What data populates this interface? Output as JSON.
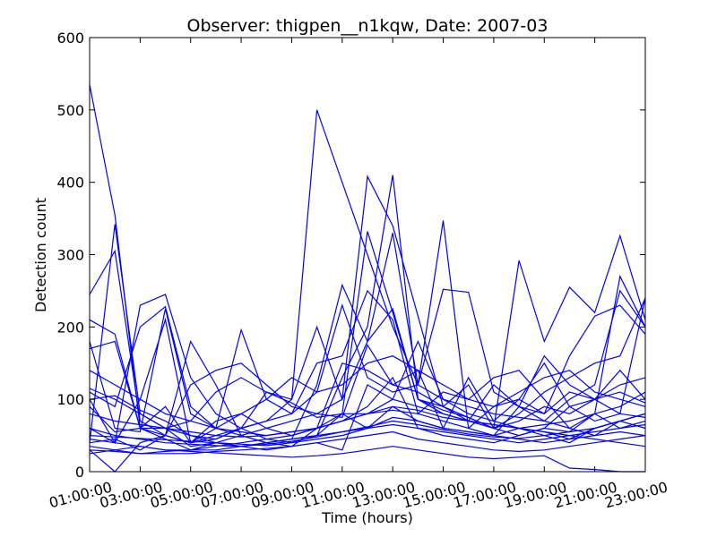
{
  "chart_data": {
    "type": "line",
    "title": "Observer: thigpen__n1kqw, Date: 2007-03",
    "xlabel": "Time (hours)",
    "ylabel": "Detection count",
    "xlim": [
      1,
      23
    ],
    "ylim": [
      0,
      600
    ],
    "x_ticks": [
      "01:00:00",
      "03:00:00",
      "05:00:00",
      "07:00:00",
      "09:00:00",
      "11:00:00",
      "13:00:00",
      "15:00:00",
      "17:00:00",
      "19:00:00",
      "21:00:00",
      "23:00:00"
    ],
    "y_ticks": [
      0,
      100,
      200,
      300,
      400,
      500,
      600
    ],
    "grid": false,
    "line_color": "#0000ff",
    "x": [
      1,
      2,
      3,
      4,
      5,
      6,
      7,
      8,
      9,
      10,
      11,
      12,
      13,
      14,
      15,
      16,
      17,
      18,
      19,
      20,
      21,
      22,
      23
    ],
    "series": [
      {
        "values": [
          535,
          355,
          60,
          45,
          30,
          40,
          35,
          40,
          45,
          50,
          80,
          60,
          90,
          70,
          60,
          55,
          50,
          60,
          55,
          45,
          60,
          70,
          80
        ]
      },
      {
        "values": [
          245,
          305,
          70,
          50,
          40,
          45,
          60,
          70,
          100,
          500,
          400,
          300,
          200,
          120,
          100,
          80,
          70,
          60,
          50,
          40,
          60,
          70,
          60
        ]
      },
      {
        "values": [
          40,
          342,
          80,
          60,
          35,
          40,
          50,
          60,
          70,
          80,
          100,
          408,
          340,
          215,
          90,
          120,
          60,
          80,
          110,
          130,
          150,
          160,
          240
        ]
      },
      {
        "values": [
          100,
          40,
          230,
          245,
          130,
          80,
          60,
          45,
          40,
          50,
          130,
          200,
          410,
          100,
          80,
          70,
          120,
          90,
          160,
          120,
          100,
          120,
          130
        ]
      },
      {
        "values": [
          210,
          190,
          60,
          50,
          40,
          60,
          80,
          100,
          130,
          110,
          230,
          130,
          110,
          120,
          347,
          60,
          50,
          90,
          80,
          160,
          215,
          230,
          190
        ]
      },
      {
        "values": [
          180,
          60,
          55,
          225,
          80,
          60,
          50,
          40,
          45,
          120,
          258,
          180,
          225,
          100,
          85,
          75,
          60,
          292,
          180,
          255,
          220,
          326,
          210
        ]
      },
      {
        "values": [
          30,
          0,
          40,
          50,
          180,
          120,
          50,
          40,
          35,
          60,
          80,
          332,
          220,
          100,
          90,
          70,
          60,
          70,
          90,
          80,
          100,
          80,
          240
        ]
      },
      {
        "values": [
          110,
          90,
          200,
          228,
          90,
          60,
          196,
          100,
          80,
          150,
          160,
          250,
          210,
          80,
          110,
          100,
          130,
          140,
          100,
          60,
          80,
          270,
          200
        ]
      },
      {
        "values": [
          60,
          40,
          100,
          210,
          40,
          50,
          60,
          110,
          100,
          200,
          100,
          180,
          330,
          120,
          252,
          248,
          110,
          90,
          70,
          100,
          120,
          250,
          200
        ]
      },
      {
        "values": [
          100,
          105,
          85,
          70,
          50,
          40,
          35,
          30,
          35,
          40,
          30,
          120,
          100,
          180,
          100,
          90,
          80,
          75,
          70,
          60,
          50,
          70,
          80
        ]
      },
      {
        "values": [
          170,
          180,
          60,
          90,
          40,
          70,
          80,
          60,
          50,
          60,
          150,
          140,
          120,
          140,
          60,
          130,
          70,
          100,
          80,
          110,
          100,
          140,
          100
        ]
      },
      {
        "values": [
          40,
          45,
          30,
          50,
          120,
          140,
          150,
          120,
          90,
          80,
          75,
          175,
          120,
          110,
          90,
          75,
          60,
          50,
          60,
          55,
          80,
          60,
          70
        ]
      },
      {
        "values": [
          35,
          30,
          25,
          28,
          30,
          35,
          40,
          45,
          50,
          60,
          70,
          90,
          130,
          60,
          50,
          45,
          40,
          50,
          60,
          90,
          100,
          110,
          95
        ]
      },
      {
        "values": [
          90,
          55,
          60,
          60,
          70,
          110,
          130,
          110,
          95,
          75,
          80,
          80,
          85,
          80,
          70,
          60,
          90,
          100,
          150,
          90,
          70,
          80,
          75
        ]
      },
      {
        "values": [
          115,
          100,
          80,
          60,
          50,
          45,
          60,
          70,
          80,
          110,
          120,
          150,
          160,
          140,
          120,
          100,
          90,
          110,
          130,
          140,
          110,
          100,
          90
        ]
      },
      {
        "values": [
          45,
          40,
          35,
          30,
          30,
          30,
          35,
          40,
          45,
          50,
          55,
          60,
          65,
          60,
          55,
          50,
          45,
          40,
          45,
          50,
          55,
          60,
          65
        ]
      },
      {
        "values": [
          30,
          28,
          25,
          25,
          25,
          28,
          30,
          32,
          35,
          40,
          45,
          50,
          55,
          45,
          40,
          35,
          30,
          28,
          30,
          35,
          40,
          45,
          50
        ]
      },
      {
        "values": [
          60,
          50,
          45,
          40,
          38,
          36,
          35,
          38,
          42,
          48,
          55,
          62,
          70,
          65,
          58,
          52,
          48,
          46,
          50,
          55,
          60,
          70,
          80
        ]
      },
      {
        "values": [
          25,
          30,
          35,
          30,
          28,
          26,
          24,
          22,
          20,
          22,
          25,
          30,
          35,
          30,
          25,
          20,
          18,
          20,
          22,
          5,
          3,
          0,
          0
        ]
      },
      {
        "values": [
          80,
          70,
          65,
          60,
          55,
          50,
          48,
          50,
          55,
          60,
          70,
          80,
          100,
          90,
          80,
          70,
          65,
          60,
          65,
          70,
          80,
          90,
          110
        ]
      },
      {
        "values": [
          50,
          48,
          46,
          44,
          42,
          40,
          38,
          36,
          40,
          45,
          50,
          60,
          75,
          70,
          60,
          55,
          50,
          45,
          40,
          45,
          50,
          55,
          50
        ]
      },
      {
        "values": [
          140,
          120,
          100,
          80,
          70,
          60,
          55,
          50,
          55,
          60,
          70,
          80,
          90,
          85,
          75,
          70,
          65,
          60,
          55,
          50,
          45,
          40,
          35
        ]
      }
    ]
  }
}
